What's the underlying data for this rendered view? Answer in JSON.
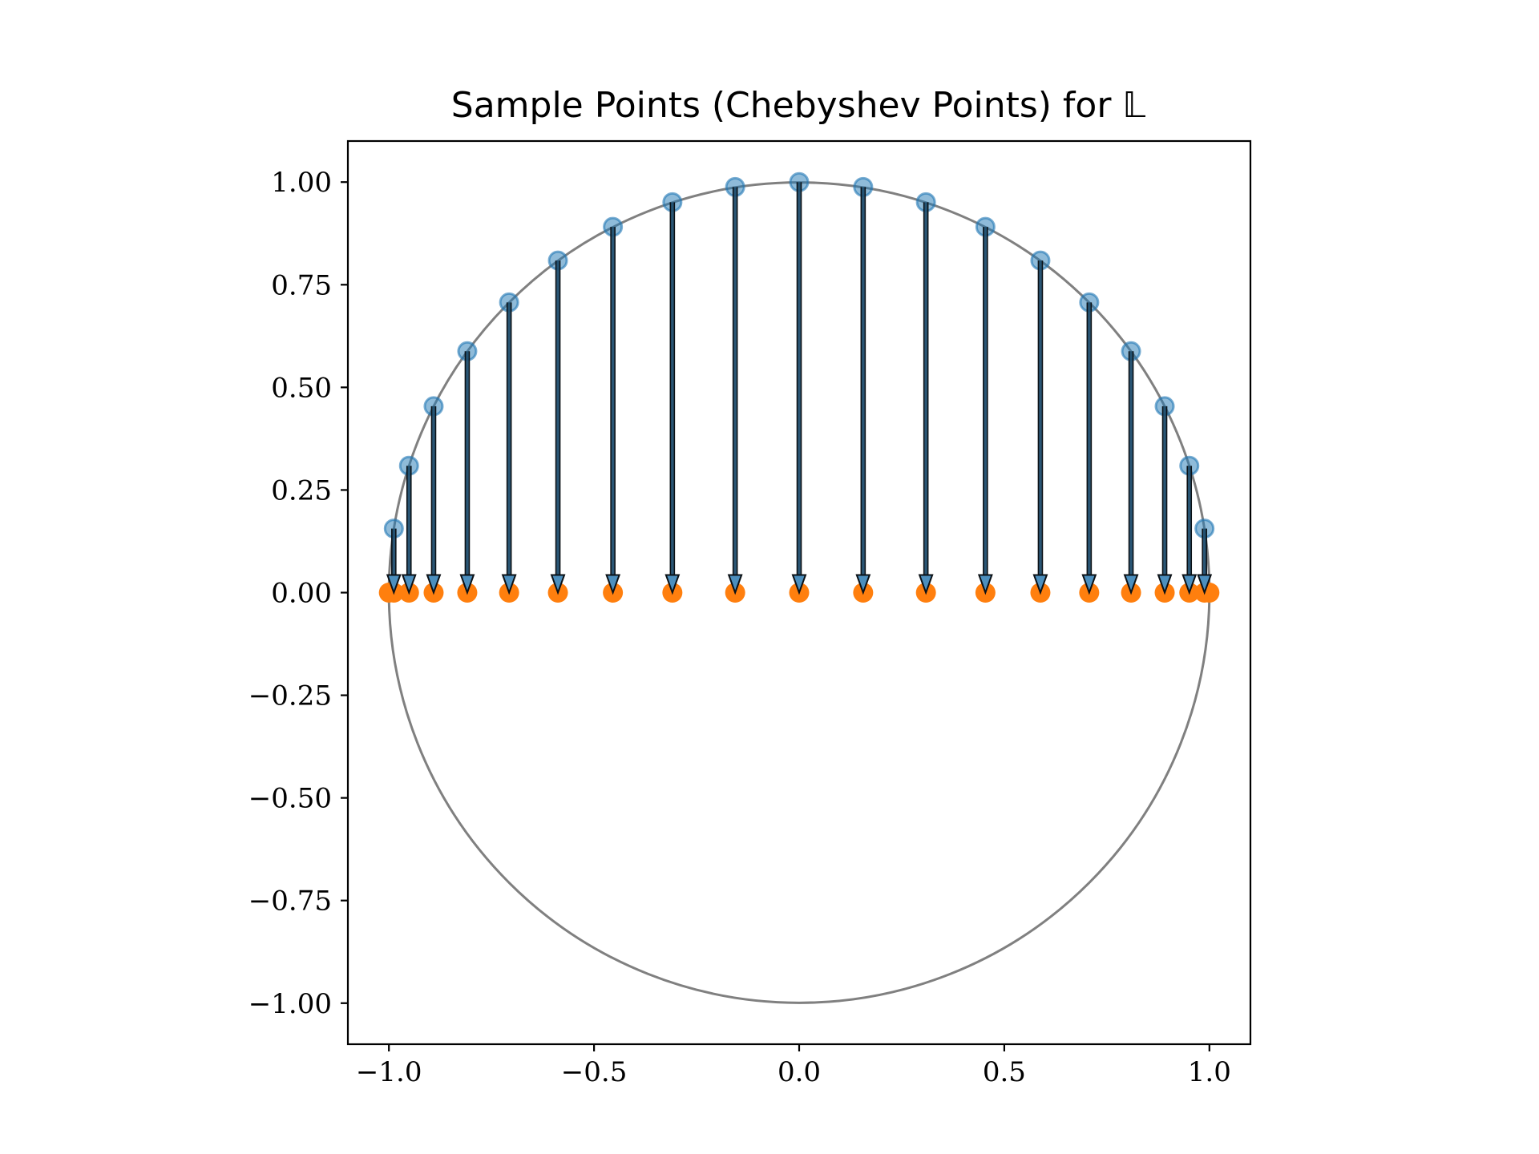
{
  "colors": {
    "circle_points": "#1f77b4",
    "line_points": "#ff7f0e",
    "unit_circle": "#808080",
    "arrows": "#1f4e6e",
    "axes": "#000000"
  },
  "chart_data": {
    "type": "scatter",
    "title": "Sample Points (Chebyshev Points) for 𝕃",
    "xlabel": "",
    "ylabel": "",
    "xlim": [
      -1.1,
      1.1
    ],
    "ylim": [
      -1.1,
      1.1
    ],
    "aspect": "equal",
    "grid": false,
    "legend": "none",
    "x_ticks": [
      -1.0,
      -0.5,
      0.0,
      0.5,
      1.0
    ],
    "x_tick_labels": [
      "−1.0",
      "−0.5",
      "0.0",
      "0.5",
      "1.0"
    ],
    "y_ticks": [
      1.0,
      0.75,
      0.5,
      0.25,
      0.0,
      -0.25,
      -0.5,
      -0.75,
      -1.0
    ],
    "y_tick_labels": [
      "1.00",
      "0.75",
      "0.50",
      "0.25",
      "0.00",
      "−0.25",
      "−0.50",
      "−0.75",
      "−1.00"
    ],
    "unit_circle": {
      "center": [
        0,
        0
      ],
      "radius": 1
    },
    "series": [
      {
        "kind": "points-on-unit-circle",
        "marker": "circle",
        "x": [
          -0.988,
          -0.951,
          -0.891,
          -0.809,
          -0.707,
          -0.588,
          -0.454,
          -0.309,
          -0.156,
          0.0,
          0.156,
          0.309,
          0.454,
          0.588,
          0.707,
          0.809,
          0.891,
          0.951,
          0.988
        ],
        "y": [
          0.156,
          0.309,
          0.454,
          0.588,
          0.707,
          0.809,
          0.891,
          0.951,
          0.988,
          1.0,
          0.988,
          0.951,
          0.891,
          0.809,
          0.707,
          0.588,
          0.454,
          0.309,
          0.156
        ]
      },
      {
        "kind": "chebyshev-points",
        "marker": "circle",
        "x": [
          -1.0,
          -0.988,
          -0.951,
          -0.891,
          -0.809,
          -0.707,
          -0.588,
          -0.454,
          -0.309,
          -0.156,
          0.0,
          0.156,
          0.309,
          0.454,
          0.588,
          0.707,
          0.809,
          0.891,
          0.951,
          0.988,
          1.0
        ],
        "y": [
          0.0,
          0.0,
          0.0,
          0.0,
          0.0,
          0.0,
          0.0,
          0.0,
          0.0,
          0.0,
          0.0,
          0.0,
          0.0,
          0.0,
          0.0,
          0.0,
          0.0,
          0.0,
          0.0,
          0.0,
          0.0
        ]
      }
    ],
    "arrows": {
      "from_y": "circle point y",
      "to_y": 0.0,
      "x": [
        -0.988,
        -0.951,
        -0.891,
        -0.809,
        -0.707,
        -0.588,
        -0.454,
        -0.309,
        -0.156,
        0.0,
        0.156,
        0.309,
        0.454,
        0.588,
        0.707,
        0.809,
        0.891,
        0.951,
        0.988
      ]
    }
  }
}
